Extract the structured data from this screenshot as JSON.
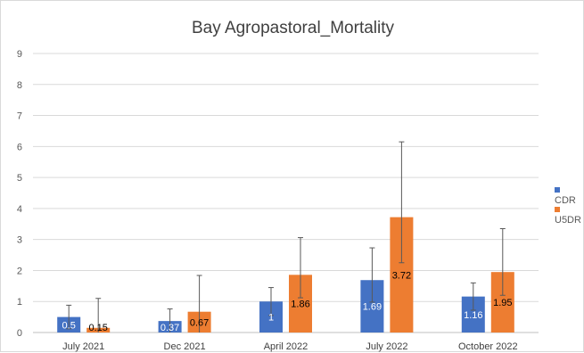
{
  "chart_data": {
    "type": "bar",
    "title": "Bay Agropastoral_Mortality",
    "categories": [
      "July 2021",
      "Dec 2021",
      "April 2022",
      "July 2022",
      "October 2022"
    ],
    "ylim": [
      0,
      9
    ],
    "yticks": [
      0,
      1,
      2,
      3,
      4,
      5,
      6,
      7,
      8,
      9
    ],
    "grid": true,
    "legend_position": "right",
    "series": [
      {
        "name": "CDR",
        "color": "#4472c4",
        "values": [
          0.5,
          0.37,
          1,
          1.69,
          1.16
        ],
        "labels": [
          "0.5",
          "0.37",
          "1",
          "1.69",
          "1.16"
        ],
        "error_low": [
          0.12,
          0.0,
          0.55,
          0.98,
          0.72
        ],
        "error_high": [
          0.88,
          0.76,
          1.45,
          2.73,
          1.6
        ]
      },
      {
        "name": "U5DR",
        "color": "#ed7d31",
        "values": [
          0.15,
          0.67,
          1.86,
          3.72,
          1.95
        ],
        "labels": [
          "0.15",
          "0.67",
          "1.86",
          "3.72",
          "1.95"
        ],
        "error_low": [
          0.0,
          0.0,
          1.12,
          2.25,
          1.2
        ],
        "error_high": [
          1.1,
          1.84,
          3.06,
          6.15,
          3.35
        ]
      }
    ]
  }
}
